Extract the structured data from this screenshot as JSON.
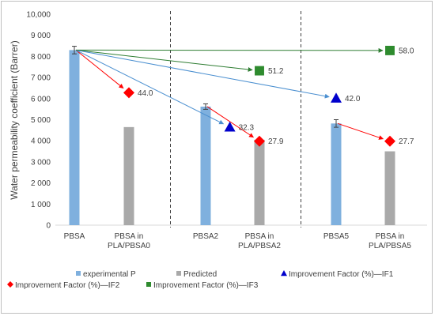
{
  "chart_data": {
    "type": "bar",
    "ylabel": "Water permeability coefficient (Barrer)",
    "xlabel": "",
    "ylim": [
      0,
      10000
    ],
    "yticks": [
      0,
      1000,
      2000,
      3000,
      4000,
      5000,
      6000,
      7000,
      8000,
      9000,
      10000
    ],
    "ytick_labels": [
      "0",
      "1 000",
      "2 000",
      "3 000",
      "4 000",
      "5 000",
      "6 000",
      "7 000",
      "8 000",
      "9 000",
      "10,000"
    ],
    "categories": [
      {
        "label_lines": [
          "PBSA"
        ]
      },
      {
        "label_lines": [
          "PBSA in",
          "PLA/PBSA0"
        ]
      },
      {
        "label_lines": [
          "PBSA2"
        ]
      },
      {
        "label_lines": [
          "PBSA in",
          "PLA/PBSA2"
        ]
      },
      {
        "label_lines": [
          "PBSA5"
        ]
      },
      {
        "label_lines": [
          "PBSA in",
          "PLA/PBSA5"
        ]
      }
    ],
    "bars": [
      {
        "category": 0,
        "series": "experimental P",
        "value": 8300,
        "error": 180
      },
      {
        "category": 1,
        "series": "Predicted",
        "value": 4650
      },
      {
        "category": 2,
        "series": "experimental P",
        "value": 5620,
        "error": 130
      },
      {
        "category": 3,
        "series": "Predicted",
        "value": 4050
      },
      {
        "category": 4,
        "series": "experimental P",
        "value": 4820,
        "error": 180
      },
      {
        "category": 5,
        "series": "Predicted",
        "value": 3500
      }
    ],
    "markers": [
      {
        "series": "Improvement Factor (%)—IF2",
        "x": 1,
        "y": 6280,
        "label": "44.0"
      },
      {
        "series": "Improvement Factor (%)—IF1",
        "x": 2.45,
        "y": 4650,
        "label": "32.3"
      },
      {
        "series": "Improvement Factor (%)—IF2",
        "x": 3,
        "y": 3980,
        "label": "27.9"
      },
      {
        "series": "Improvement Factor (%)—IF3",
        "x": 3,
        "y": 7320,
        "label": "51.2"
      },
      {
        "series": "Improvement Factor (%)—IF1",
        "x": 4,
        "y": 6020,
        "label": "42.0"
      },
      {
        "series": "Improvement Factor (%)—IF2",
        "x": 5,
        "y": 3980,
        "label": "27.7"
      },
      {
        "series": "Improvement Factor (%)—IF3",
        "x": 5,
        "y": 8280,
        "label": "58.0"
      }
    ],
    "arrows": [
      {
        "from": [
          0,
          8300
        ],
        "to": [
          1,
          6280
        ],
        "color": "#ff0000"
      },
      {
        "from": [
          0,
          8300
        ],
        "to": [
          2.45,
          4650
        ],
        "color": "#4a8fd0"
      },
      {
        "from": [
          0,
          8300
        ],
        "to": [
          3,
          7320
        ],
        "color": "#2e7d32"
      },
      {
        "from": [
          0,
          8300
        ],
        "to": [
          4,
          6020
        ],
        "color": "#4a8fd0"
      },
      {
        "from": [
          0,
          8300
        ],
        "to": [
          5,
          8280
        ],
        "color": "#2e7d32"
      },
      {
        "from": [
          2,
          5620
        ],
        "to": [
          3,
          3980
        ],
        "color": "#ff0000"
      },
      {
        "from": [
          4,
          4820
        ],
        "to": [
          5,
          3980
        ],
        "color": "#ff0000"
      }
    ],
    "separators": [
      1.5,
      3.5
    ],
    "legend": {
      "placement": "bottom",
      "entries": [
        {
          "label": "experimental P",
          "shape": "square",
          "color": "#7fb0de"
        },
        {
          "label": "Predicted",
          "shape": "square",
          "color": "#a9a9a9"
        },
        {
          "label": "Improvement Factor (%)—IF1",
          "shape": "triangle",
          "color": "#0000cc"
        },
        {
          "label": "Improvement Factor (%)—IF2",
          "shape": "diamond",
          "color": "#ff0000"
        },
        {
          "label": "Improvement Factor (%)—IF3",
          "shape": "square",
          "color": "#2e8b2e"
        }
      ]
    },
    "colors": {
      "experimental P": "#7fb0de",
      "Predicted": "#a9a9a9",
      "Improvement Factor (%)—IF1": "#0000cc",
      "Improvement Factor (%)—IF2": "#ff0000",
      "Improvement Factor (%)—IF3": "#2e8b2e"
    }
  }
}
